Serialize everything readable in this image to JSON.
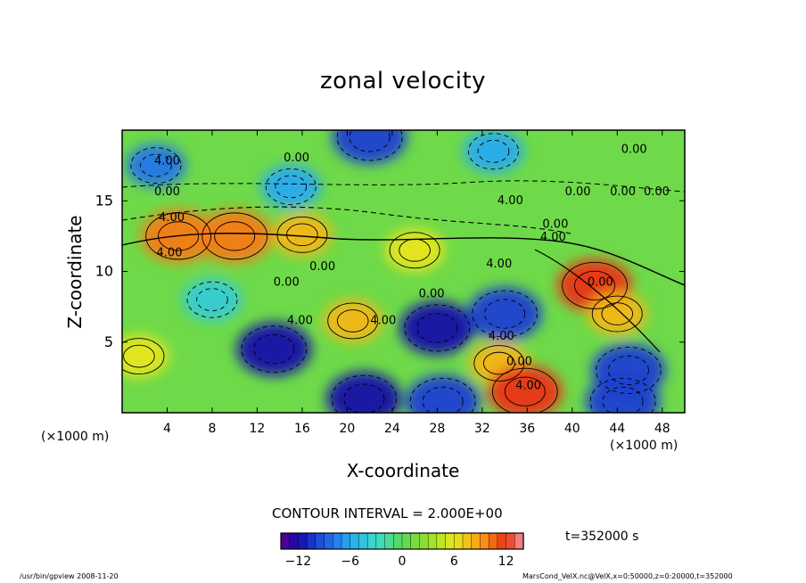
{
  "chart_data": {
    "type": "heatmap",
    "title": "zonal velocity",
    "xlabel": "X-coordinate",
    "ylabel": "Z-coordinate",
    "x_unit_left": "(×1000 m)",
    "x_unit_right": "(×1000 m)",
    "xlim": [
      0,
      50
    ],
    "ylim": [
      0,
      20
    ],
    "x_ticks": [
      "4",
      "8",
      "12",
      "16",
      "20",
      "24",
      "28",
      "32",
      "36",
      "40",
      "44",
      "48"
    ],
    "x_tick_values": [
      4,
      8,
      12,
      16,
      20,
      24,
      28,
      32,
      36,
      40,
      44,
      48
    ],
    "y_ticks": [
      "5",
      "10",
      "15"
    ],
    "y_tick_values": [
      5,
      10,
      15
    ],
    "contour_interval": "CONTOUR INTERVAL = 2.000E+00",
    "colorbar": {
      "ticks": [
        "−12",
        "−6",
        "0",
        "6",
        "12"
      ],
      "tick_values": [
        -12,
        -6,
        0,
        6,
        12
      ],
      "range": [
        -14,
        14
      ]
    },
    "contour_labels": [
      {
        "text": "4.00",
        "x": 4,
        "z": 17.8
      },
      {
        "text": "0.00",
        "x": 4,
        "z": 15.6
      },
      {
        "text": "4.00",
        "x": 4.4,
        "z": 13.8
      },
      {
        "text": "4.00",
        "x": 4.2,
        "z": 11.3
      },
      {
        "text": "0.00",
        "x": 15.5,
        "z": 18
      },
      {
        "text": "0.00",
        "x": 45.5,
        "z": 18.6
      },
      {
        "text": "4.00",
        "x": 34.5,
        "z": 15
      },
      {
        "text": "0.00",
        "x": 40.5,
        "z": 15.6
      },
      {
        "text": "0.00",
        "x": 44.5,
        "z": 15.6
      },
      {
        "text": "0.00",
        "x": 47.5,
        "z": 15.6
      },
      {
        "text": "0.00",
        "x": 38.5,
        "z": 13.3
      },
      {
        "text": "4.00",
        "x": 38.3,
        "z": 12.4
      },
      {
        "text": "4.00",
        "x": 33.5,
        "z": 10.5
      },
      {
        "text": "0.00",
        "x": 27.5,
        "z": 8.4
      },
      {
        "text": "0.00",
        "x": 17.8,
        "z": 10.3
      },
      {
        "text": "0.00",
        "x": 14.6,
        "z": 9.2
      },
      {
        "text": "4.00",
        "x": 15.8,
        "z": 6.5
      },
      {
        "text": "4.00",
        "x": 23.2,
        "z": 6.5
      },
      {
        "text": "4.00",
        "x": 33.7,
        "z": 5.4
      },
      {
        "text": "0.00",
        "x": 35.3,
        "z": 3.6
      },
      {
        "text": "4.00",
        "x": 36.1,
        "z": 1.9
      },
      {
        "text": "0.00",
        "x": 42.5,
        "z": 9.2
      }
    ],
    "field_features": [
      {
        "x": 5,
        "z": 12.5,
        "value": 10
      },
      {
        "x": 10,
        "z": 12.5,
        "value": 10
      },
      {
        "x": 16,
        "z": 12.6,
        "value": 8
      },
      {
        "x": 26,
        "z": 11.5,
        "value": 6
      },
      {
        "x": 42,
        "z": 9,
        "value": 12
      },
      {
        "x": 44,
        "z": 7,
        "value": 8
      },
      {
        "x": 20.5,
        "z": 6.5,
        "value": 8
      },
      {
        "x": 1.5,
        "z": 4,
        "value": 6
      },
      {
        "x": 13.5,
        "z": 4.5,
        "value": -12
      },
      {
        "x": 21.5,
        "z": 1,
        "value": -12
      },
      {
        "x": 28,
        "z": 6,
        "value": -12
      },
      {
        "x": 28.5,
        "z": 0.8,
        "value": -10
      },
      {
        "x": 34,
        "z": 7,
        "value": -10
      },
      {
        "x": 45,
        "z": 3,
        "value": -10
      },
      {
        "x": 44.5,
        "z": 0.8,
        "value": -10
      },
      {
        "x": 33.5,
        "z": 3.5,
        "value": 8
      },
      {
        "x": 35.8,
        "z": 1.5,
        "value": 12
      },
      {
        "x": 3,
        "z": 17.5,
        "value": -8
      },
      {
        "x": 22,
        "z": 19.5,
        "value": -10
      },
      {
        "x": 15,
        "z": 16,
        "value": -6
      },
      {
        "x": 33,
        "z": 18.5,
        "value": -6
      },
      {
        "x": 8,
        "z": 8,
        "value": -4
      }
    ]
  },
  "time_label": "t=352000 s",
  "footer_left": "/usr/bin/gpview  2008-11-20",
  "footer_right": "MarsCond_VelX.nc@VelX,x=0:50000,z=0:20000,t=352000"
}
